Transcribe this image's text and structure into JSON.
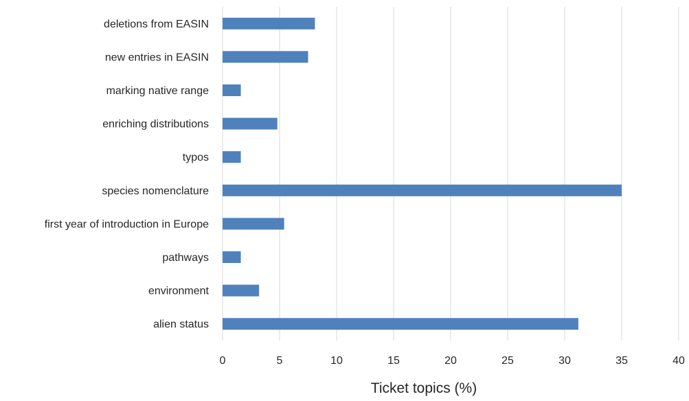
{
  "chart_data": {
    "type": "bar",
    "orientation": "horizontal",
    "categories": [
      "deletions from EASIN",
      "new entries in EASIN",
      "marking native range",
      "enriching distributions",
      "typos",
      "species nomenclature",
      "first year of introduction in Europe",
      "pathways",
      "environment",
      "alien status"
    ],
    "values": [
      8.1,
      7.5,
      1.6,
      4.8,
      1.6,
      35.0,
      5.4,
      1.6,
      3.2,
      31.2
    ],
    "title": "",
    "xlabel": "Ticket topics (%)",
    "ylabel": "",
    "xlim": [
      0,
      40
    ],
    "x_ticks": [
      "0",
      "5",
      "10",
      "15",
      "20",
      "25",
      "30",
      "35",
      "40"
    ],
    "grid": "vertical",
    "legend": "none",
    "colors": {
      "bar": "#4f81bd",
      "grid": "#d9d9d9",
      "text": "#262626"
    }
  }
}
